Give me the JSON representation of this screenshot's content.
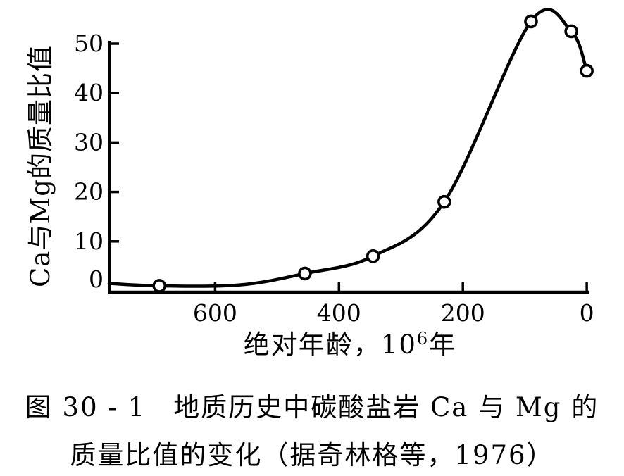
{
  "figure": {
    "caption_line1": "图 30 - 1　地质历史中碳酸盐岩 Ca 与 Mg 的",
    "caption_line2": "质量比值的变化（据奇林格等，1976）"
  },
  "colors": {
    "ink": "#000000",
    "paper": "#ffffff"
  },
  "chart_data": {
    "type": "line",
    "title": "地质历史中碳酸盐岩Ca与Mg的质量比值的变化",
    "source_note": "据奇林格等，1976",
    "xlabel": "绝对年龄，10⁶年",
    "xlabel_parts": {
      "main": "绝对年龄，10",
      "sup": "6",
      "suffix": "年"
    },
    "ylabel": "Ca与Mg的质量比值",
    "x_axis_reversed": true,
    "grid": false,
    "legend_position": "none",
    "marker": "open-circle",
    "x_ticks": [
      600,
      400,
      200,
      0
    ],
    "y_ticks": [
      0,
      10,
      20,
      30,
      40,
      50
    ],
    "x_range": [
      771,
      -1
    ],
    "y_range": [
      0,
      50
    ],
    "series": [
      {
        "name": "碳酸盐岩 Ca/Mg 质量比值",
        "x": [
          690,
          455,
          345,
          230,
          90,
          25,
          0
        ],
        "y": [
          1,
          3.5,
          7,
          18,
          54.5,
          52.5,
          44.5
        ]
      }
    ],
    "curve_guide_points": [
      {
        "x": 771,
        "y": 1.5
      },
      {
        "x": 560,
        "y": 1.2
      }
    ]
  }
}
